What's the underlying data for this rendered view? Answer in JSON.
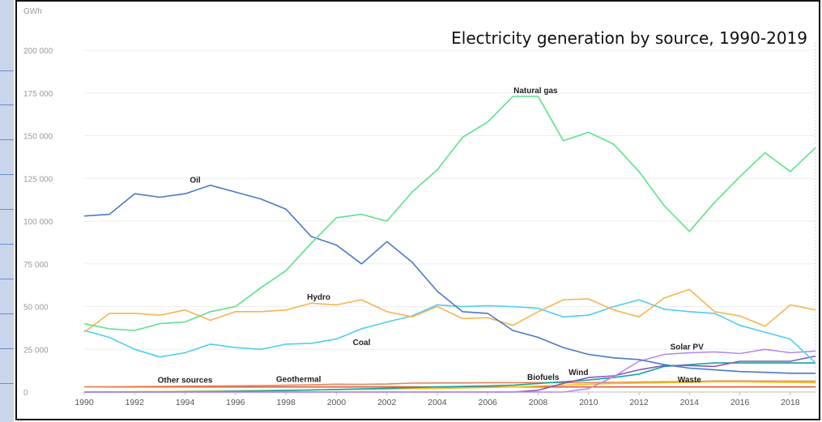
{
  "chart_data": {
    "type": "line",
    "title": "Electricity generation by source, 1990-2019",
    "unit_label": "GWh",
    "xlabel": "",
    "ylabel": "",
    "ylim": [
      0,
      200000
    ],
    "y_ticks": [
      0,
      25000,
      50000,
      75000,
      100000,
      125000,
      150000,
      175000,
      200000
    ],
    "y_tick_labels": [
      "0",
      "25 000",
      "50 000",
      "75 000",
      "100 000",
      "125 000",
      "150 000",
      "175 000",
      "200 000"
    ],
    "xlim": [
      1990,
      2019
    ],
    "x_ticks": [
      1990,
      1992,
      1994,
      1996,
      1998,
      2000,
      2002,
      2004,
      2006,
      2008,
      2010,
      2012,
      2014,
      2016,
      2018
    ],
    "x": [
      1990,
      1991,
      1992,
      1993,
      1994,
      1995,
      1996,
      1997,
      1998,
      1999,
      2000,
      2001,
      2002,
      2003,
      2004,
      2005,
      2006,
      2007,
      2008,
      2009,
      2010,
      2011,
      2012,
      2013,
      2014,
      2015,
      2016,
      2017,
      2018,
      2019
    ],
    "grid": true,
    "legend": "inline labels",
    "series": [
      {
        "name": "Natural gas",
        "color": "#5fe08a",
        "values": [
          40000,
          37000,
          36000,
          40000,
          41000,
          47000,
          50000,
          61000,
          71000,
          87000,
          102000,
          104000,
          100000,
          117000,
          130000,
          149000,
          158000,
          173000,
          173000,
          147000,
          152000,
          145000,
          129000,
          109000,
          94000,
          111000,
          126000,
          140000,
          129000,
          143000
        ]
      },
      {
        "name": "Oil",
        "color": "#4a78c9",
        "values": [
          103000,
          104000,
          116000,
          114000,
          116000,
          121000,
          117000,
          113000,
          107000,
          91000,
          86000,
          75000,
          88000,
          76000,
          59000,
          47000,
          46000,
          36000,
          32000,
          26000,
          22000,
          20000,
          19000,
          16000,
          14000,
          13000,
          12000,
          11500,
          11000,
          11000
        ]
      },
      {
        "name": "Hydro",
        "color": "#f5b551",
        "values": [
          35000,
          46000,
          46000,
          45000,
          48000,
          42000,
          47000,
          47000,
          48000,
          52000,
          51000,
          54000,
          47000,
          44000,
          50000,
          43000,
          43500,
          39000,
          47000,
          54000,
          54500,
          48000,
          44000,
          55000,
          60000,
          47000,
          44500,
          38500,
          51000,
          48000
        ]
      },
      {
        "name": "Coal",
        "color": "#4fcdf0",
        "values": [
          36000,
          32000,
          25000,
          20500,
          23000,
          28000,
          26000,
          25000,
          28000,
          28500,
          31000,
          37000,
          41000,
          44500,
          51000,
          50000,
          50500,
          50000,
          49000,
          44000,
          45000,
          50000,
          54000,
          48500,
          47000,
          46000,
          39000,
          35000,
          31000,
          17000
        ]
      },
      {
        "name": "Solar PV",
        "color": "#b28cec",
        "values": [
          0,
          0,
          0,
          0,
          0,
          0,
          0,
          0,
          0,
          0,
          0,
          0,
          0,
          0,
          0,
          0,
          0,
          0,
          0,
          0,
          2000,
          9000,
          18000,
          22000,
          23000,
          23500,
          22500,
          25000,
          23000,
          24000
        ]
      },
      {
        "name": "Wind",
        "color": "#8a58b8",
        "values": [
          0,
          0,
          0,
          0,
          0,
          0,
          0,
          0,
          0,
          0,
          0,
          0,
          0,
          0,
          0,
          0,
          0,
          0,
          1000,
          5000,
          8500,
          9500,
          13000,
          15500,
          15500,
          15000,
          18000,
          18000,
          18000,
          21000
        ]
      },
      {
        "name": "Biofuels",
        "color": "#14a3a3",
        "values": [
          0,
          0,
          0,
          0,
          200,
          300,
          500,
          700,
          900,
          1200,
          1500,
          1800,
          2200,
          2600,
          3000,
          3300,
          3600,
          4000,
          5000,
          6000,
          7000,
          8500,
          10500,
          15000,
          16000,
          17000,
          17000,
          17000,
          17000,
          17000
        ]
      },
      {
        "name": "Waste",
        "color": "#f2c318",
        "values": [
          0,
          100,
          200,
          300,
          400,
          500,
          600,
          800,
          1000,
          1200,
          1400,
          1600,
          1800,
          2000,
          2200,
          2400,
          2600,
          3000,
          3500,
          4000,
          4500,
          5000,
          5200,
          5500,
          5700,
          6000,
          6000,
          5800,
          5600,
          5500
        ]
      },
      {
        "name": "Geothermal",
        "color": "#e5855a",
        "values": [
          3000,
          3100,
          3200,
          3300,
          3400,
          3500,
          3600,
          3800,
          4000,
          4200,
          4600,
          4500,
          4700,
          5200,
          5300,
          5300,
          5500,
          5500,
          5500,
          5500,
          5500,
          5600,
          5800,
          6000,
          6000,
          6500,
          6500,
          6400,
          6400,
          6300
        ]
      },
      {
        "name": "Other sources",
        "color": "#e05a3a",
        "values": [
          3000,
          3000,
          3000,
          3000,
          3000,
          3000,
          3000,
          3000,
          3000,
          3000,
          3000,
          3000,
          3000,
          3000,
          3000,
          3000,
          3000,
          3000,
          3000,
          3000,
          3000,
          3000,
          3000,
          3000,
          3000,
          3000,
          3000,
          3000,
          3000,
          3000
        ]
      }
    ],
    "labels": [
      {
        "text": "Natural gas",
        "x": 2007.9,
        "y": 175000
      },
      {
        "text": "Oil",
        "x": 1994.4,
        "y": 122500
      },
      {
        "text": "Hydro",
        "x": 1999.3,
        "y": 54000
      },
      {
        "text": "Coal",
        "x": 2001.0,
        "y": 27500
      },
      {
        "text": "Solar PV",
        "x": 2013.9,
        "y": 25000
      },
      {
        "text": "Biofuels",
        "x": 2008.2,
        "y": 7000
      },
      {
        "text": "Wind",
        "x": 2009.6,
        "y": 10000
      },
      {
        "text": "Waste",
        "x": 2014.0,
        "y": 5800
      },
      {
        "text": "Geothermal",
        "x": 1998.5,
        "y": 6000
      },
      {
        "text": "Other sources",
        "x": 1994.0,
        "y": 5400
      }
    ]
  }
}
